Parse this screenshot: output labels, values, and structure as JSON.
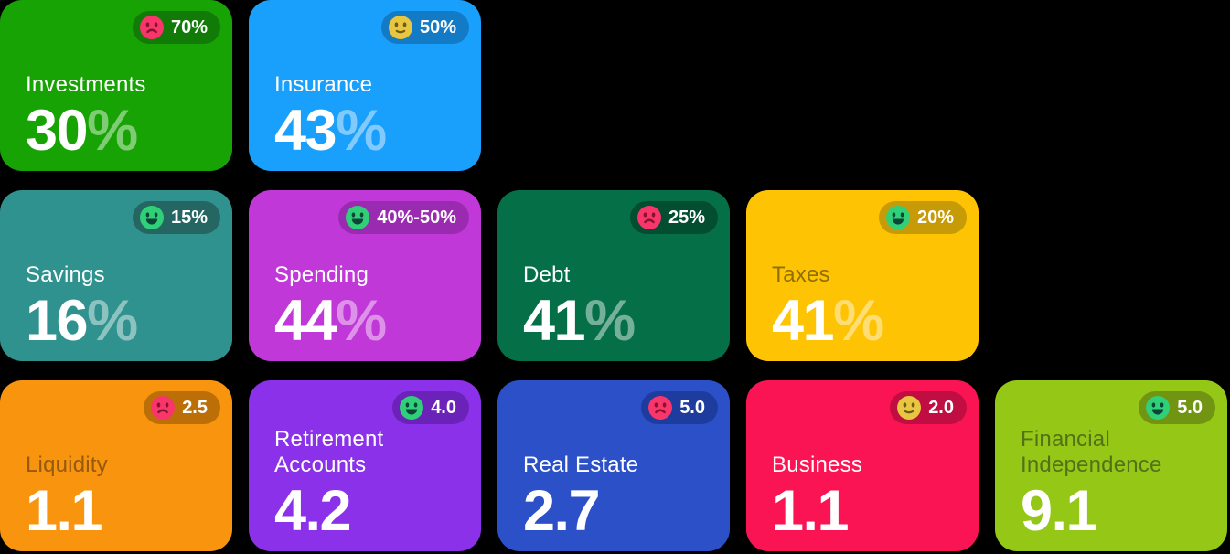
{
  "page": {
    "background": "#000000"
  },
  "emoji_palette": {
    "happy": {
      "face": "#30D078",
      "features": "#0C4538"
    },
    "neutral": {
      "face": "#E8C63F",
      "features": "#6E5A1C"
    },
    "sad": {
      "face": "#F9366B",
      "features": "#87132F"
    }
  },
  "cards": [
    {
      "id": "investments",
      "row": 1,
      "label": "Investments",
      "value": "30",
      "suffix": "%",
      "badge": {
        "emoji": "sad",
        "text": "70%"
      },
      "colors": {
        "bg": "#17A304",
        "badge_bg": "#127A07",
        "label": "#FFFFFF"
      }
    },
    {
      "id": "insurance",
      "row": 1,
      "label": "Insurance",
      "value": "43",
      "suffix": "%",
      "badge": {
        "emoji": "neutral",
        "text": "50%"
      },
      "colors": {
        "bg": "#199FFC",
        "badge_bg": "#137AC5",
        "label": "#FFFFFF"
      }
    },
    {
      "id": "savings",
      "row": 2,
      "label": "Savings",
      "value": "16",
      "suffix": "%",
      "badge": {
        "emoji": "happy",
        "text": "15%"
      },
      "colors": {
        "bg": "#2F928E",
        "badge_bg": "#256663",
        "label": "#FFFFFF"
      }
    },
    {
      "id": "spending",
      "row": 2,
      "label": "Spending",
      "value": "44",
      "suffix": "%",
      "badge": {
        "emoji": "happy",
        "text": "40%-50%"
      },
      "colors": {
        "bg": "#C138D8",
        "badge_bg": "#9A2BB1",
        "label": "#FFFFFF"
      }
    },
    {
      "id": "debt",
      "row": 2,
      "label": "Debt",
      "value": "41",
      "suffix": "%",
      "badge": {
        "emoji": "sad",
        "text": "25%"
      },
      "colors": {
        "bg": "#057048",
        "badge_bg": "#034D31",
        "label": "#FFFFFF"
      }
    },
    {
      "id": "taxes",
      "row": 2,
      "label": "Taxes",
      "value": "41",
      "suffix": "%",
      "badge": {
        "emoji": "happy",
        "text": "20%"
      },
      "colors": {
        "bg": "#FEC303",
        "badge_bg": "#C79B07",
        "label": "#8E6F05"
      }
    },
    {
      "id": "liquidity",
      "row": 3,
      "label": "Liquidity",
      "value": "1.1",
      "suffix": "",
      "badge": {
        "emoji": "sad",
        "text": "2.5"
      },
      "colors": {
        "bg": "#F8940D",
        "badge_bg": "#BC6F06",
        "label": "#955A0E"
      }
    },
    {
      "id": "retirement-accounts",
      "row": 3,
      "label": "Retirement Accounts",
      "value": "4.2",
      "suffix": "",
      "badge": {
        "emoji": "happy",
        "text": "4.0"
      },
      "colors": {
        "bg": "#8B31E9",
        "badge_bg": "#6A22B8",
        "label": "#FFFFFF"
      }
    },
    {
      "id": "real-estate",
      "row": 3,
      "label": "Real Estate",
      "value": "2.7",
      "suffix": "",
      "badge": {
        "emoji": "sad",
        "text": "5.0"
      },
      "colors": {
        "bg": "#2B50C8",
        "badge_bg": "#1E3C9D",
        "label": "#FFFFFF"
      }
    },
    {
      "id": "business",
      "row": 3,
      "label": "Business",
      "value": "1.1",
      "suffix": "",
      "badge": {
        "emoji": "neutral",
        "text": "2.0"
      },
      "colors": {
        "bg": "#FB1453",
        "badge_bg": "#C00E42",
        "label": "#FFFFFF"
      }
    },
    {
      "id": "financial-independence",
      "row": 3,
      "label": "Financial Independence",
      "value": "9.1",
      "suffix": "",
      "badge": {
        "emoji": "happy",
        "text": "5.0"
      },
      "colors": {
        "bg": "#95C716",
        "badge_bg": "#719412",
        "label": "#527119"
      }
    }
  ]
}
